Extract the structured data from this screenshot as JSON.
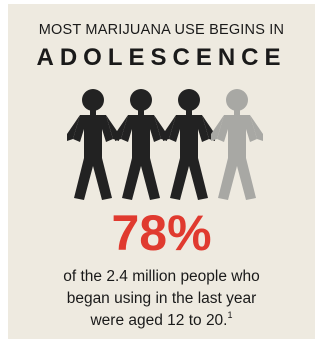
{
  "headline": {
    "line1": "MOST MARIJUANA USE BEGINS IN",
    "line2": "ADOLESCENCE"
  },
  "figures": {
    "icon": "paper-doll-chain-icon",
    "count": 4,
    "highlight_color": "#222222",
    "fade_color": "#a8a8a4"
  },
  "stat": {
    "value": "78%",
    "color": "#e03a2f"
  },
  "caption": {
    "line1": "of the 2.4 million people who",
    "line2": "began using in the last year",
    "line3": "were aged 12 to 20.",
    "footnote": "1"
  }
}
